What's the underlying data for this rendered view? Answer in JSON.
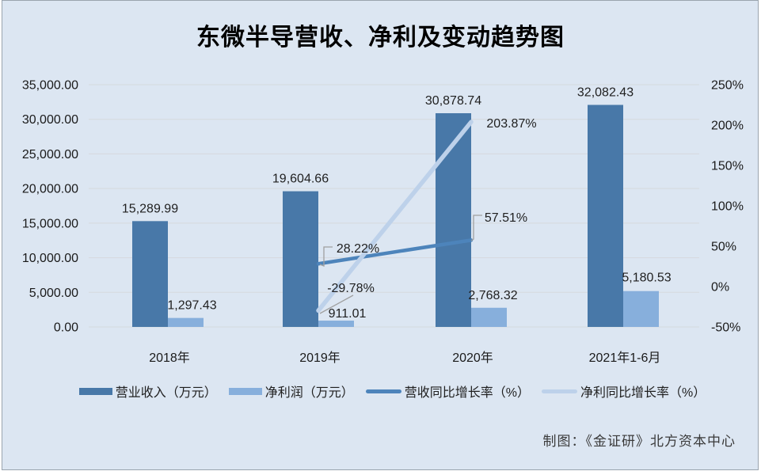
{
  "chart_data": {
    "type": "bar+line",
    "title": "东微半导营收、净利及变动趋势图",
    "categories": [
      "2018年",
      "2019年",
      "2020年",
      "2021年1-6月"
    ],
    "series": [
      {
        "name": "营业收入（万元）",
        "type": "bar",
        "axis": "left",
        "color": "#4878a8",
        "values": [
          15289.99,
          19604.66,
          30878.74,
          32082.43
        ],
        "labels": [
          "15,289.99",
          "19,604.66",
          "30,878.74",
          "32,082.43"
        ]
      },
      {
        "name": "净利润（万元）",
        "type": "bar",
        "axis": "left",
        "color": "#87afdc",
        "values": [
          1297.43,
          911.01,
          2768.32,
          5180.53
        ],
        "labels": [
          "1,297.43",
          "911.01",
          "2,768.32",
          "5,180.53"
        ]
      },
      {
        "name": "营收同比增长率（%）",
        "type": "line",
        "axis": "right",
        "color": "#4d84bb",
        "x": [
          "2019年",
          "2020年"
        ],
        "values": [
          28.22,
          57.51
        ],
        "labels": [
          "28.22%",
          "57.51%"
        ]
      },
      {
        "name": "净利同比增长率（%）",
        "type": "line",
        "axis": "right",
        "color": "#bdd1ea",
        "x": [
          "2019年",
          "2020年"
        ],
        "values": [
          -29.78,
          203.87
        ],
        "labels": [
          "-29.78%",
          "203.87%"
        ]
      }
    ],
    "left_axis": {
      "min": 0,
      "max": 35000,
      "tick_labels": [
        "35,000.00",
        "30,000.00",
        "25,000.00",
        "20,000.00",
        "15,000.00",
        "10,000.00",
        "5,000.00",
        "0.00"
      ]
    },
    "right_axis": {
      "min": -50,
      "max": 250,
      "tick_labels": [
        "250%",
        "200%",
        "150%",
        "100%",
        "50%",
        "0%",
        "-50%"
      ]
    },
    "grid": true,
    "legend_position": "bottom"
  },
  "legend": {
    "items": [
      {
        "label": "营业收入（万元）",
        "swatch": "bar",
        "color": "#4878a8"
      },
      {
        "label": "净利润（万元）",
        "swatch": "bar",
        "color": "#87afdc"
      },
      {
        "label": "营收同比增长率（%）",
        "swatch": "line",
        "color": "#4d84bb"
      },
      {
        "label": "净利同比增长率（%）",
        "swatch": "line",
        "color": "#bdd1ea"
      }
    ]
  },
  "footer": {
    "credit": "制图：《金证研》北方资本中心"
  },
  "colors": {
    "panel_background": "#dce6f2",
    "gridline": "#d5d9dd",
    "leader_line": "#a0a0a0",
    "label_text": "#1f1f1f",
    "title_text": "#000000"
  }
}
